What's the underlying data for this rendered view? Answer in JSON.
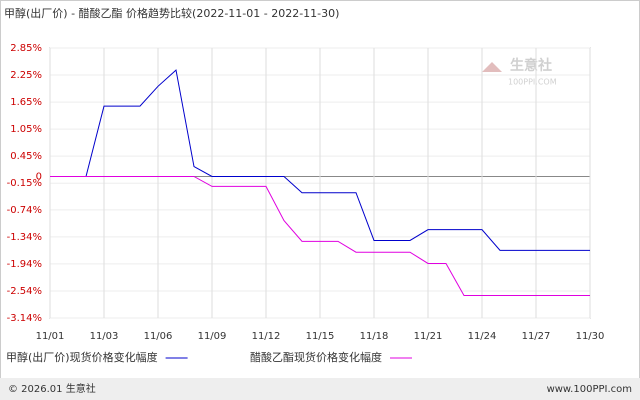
{
  "chart_data": {
    "type": "line",
    "title": "甲醇(出厂价) - 醋酸乙酯 价格趋势比较(2022-11-01 - 2022-11-30)",
    "categories": [
      "11/01",
      null,
      null,
      "11/03",
      null,
      null,
      "11/06",
      null,
      null,
      "11/09",
      null,
      null,
      "11/12",
      null,
      null,
      "11/15",
      null,
      null,
      "11/18",
      null,
      null,
      "11/21",
      null,
      null,
      "11/24",
      null,
      null,
      "11/27",
      null,
      null,
      "11/30"
    ],
    "series": [
      {
        "name": "甲醇(出厂价)现货价格变化幅度",
        "color": "#0000cc",
        "values": [
          0,
          0,
          0,
          1.56,
          1.56,
          1.56,
          2.0,
          2.36,
          0.22,
          0,
          0,
          0,
          0,
          0,
          -0.36,
          -0.36,
          -0.36,
          -0.36,
          -1.42,
          -1.42,
          -1.42,
          -1.18,
          -1.18,
          -1.18,
          -1.18,
          -1.64,
          -1.64,
          -1.64,
          -1.64,
          -1.64,
          -1.64
        ]
      },
      {
        "name": "醋酸乙酯现货价格变化幅度",
        "color": "#e000e0",
        "values": [
          0,
          0,
          0,
          0,
          0,
          0,
          0,
          0,
          0,
          -0.22,
          -0.22,
          -0.22,
          -0.22,
          -0.98,
          -1.44,
          -1.44,
          -1.44,
          -1.68,
          -1.68,
          -1.68,
          -1.68,
          -1.93,
          -1.93,
          -2.64,
          -2.64,
          -2.64,
          -2.64,
          -2.64,
          -2.64,
          -2.64,
          -2.64
        ]
      }
    ],
    "ylim": [
      -3.14,
      2.85
    ],
    "yticks": [
      {
        "value": 2.85,
        "label": "2.85%"
      },
      {
        "value": 2.25,
        "label": "2.25%"
      },
      {
        "value": 1.65,
        "label": "1.65%"
      },
      {
        "value": 1.05,
        "label": "1.05%"
      },
      {
        "value": 0.45,
        "label": "0.45%"
      },
      0,
      {
        "value": -0.15,
        "label": "-0.15%"
      },
      {
        "value": -0.74,
        "label": "-0.74%"
      },
      {
        "value": -1.34,
        "label": "-1.34%"
      },
      {
        "value": -1.94,
        "label": "-1.94%"
      },
      {
        "value": -2.54,
        "label": "-2.54%"
      },
      {
        "value": -3.14,
        "label": "-3.14%"
      }
    ],
    "tick_color": "#cc0000",
    "grid": true,
    "watermark": {
      "name": "生意社",
      "site": "100PPI.COM"
    },
    "footer": {
      "left": "© 2026.01 生意社",
      "right": "www.100PPI.com"
    }
  }
}
